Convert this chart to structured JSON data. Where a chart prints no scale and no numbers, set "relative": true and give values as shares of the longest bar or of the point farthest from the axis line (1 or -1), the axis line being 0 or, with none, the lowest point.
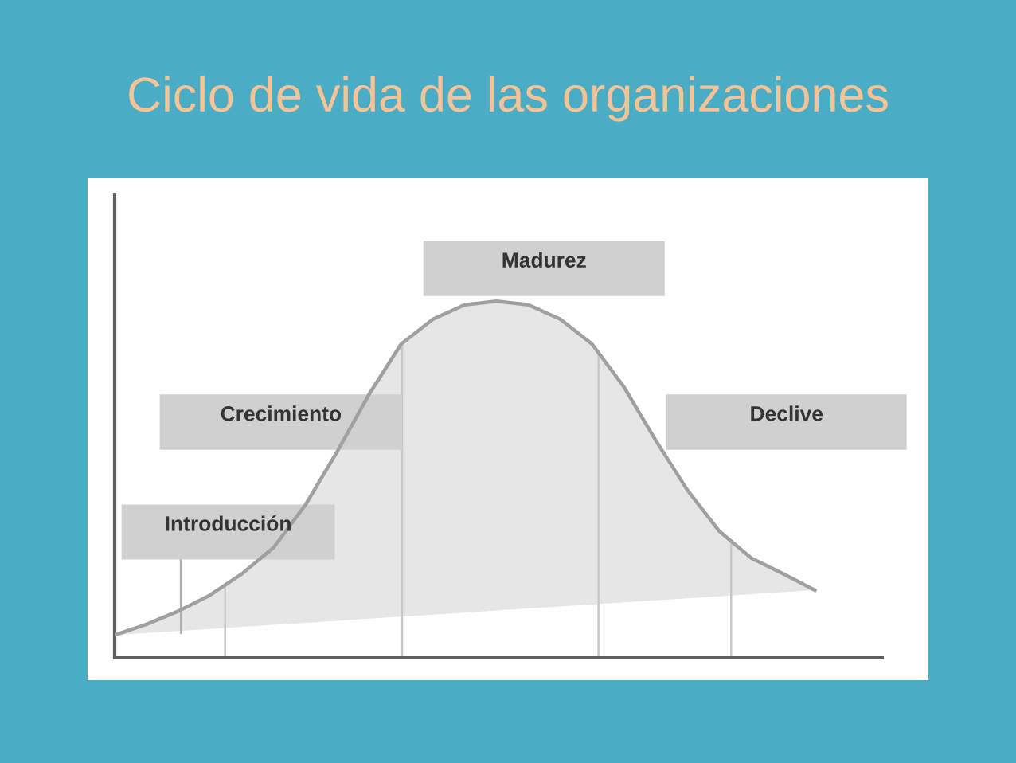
{
  "chart_data": {
    "type": "line",
    "title": "Ciclo de vida de las organizaciones",
    "relative": true,
    "categories": [
      null,
      null,
      null,
      null,
      null,
      null,
      null,
      null,
      null,
      null,
      null,
      null,
      null,
      null,
      null,
      null,
      null,
      null,
      null,
      null,
      null,
      null,
      null
    ],
    "series": [
      {
        "color": "#a0a0a0",
        "values": [
          0.064,
          0.094,
          0.131,
          0.176,
          0.236,
          0.31,
          0.43,
          0.58,
          0.74,
          0.88,
          0.95,
          0.99,
          1.0,
          0.99,
          0.95,
          0.88,
          0.76,
          0.61,
          0.47,
          0.355,
          0.28,
          0.236,
          0.19
        ]
      }
    ],
    "annotations": [
      "Madurez",
      "Crecimiento",
      "Declive",
      "Introducción"
    ]
  }
}
